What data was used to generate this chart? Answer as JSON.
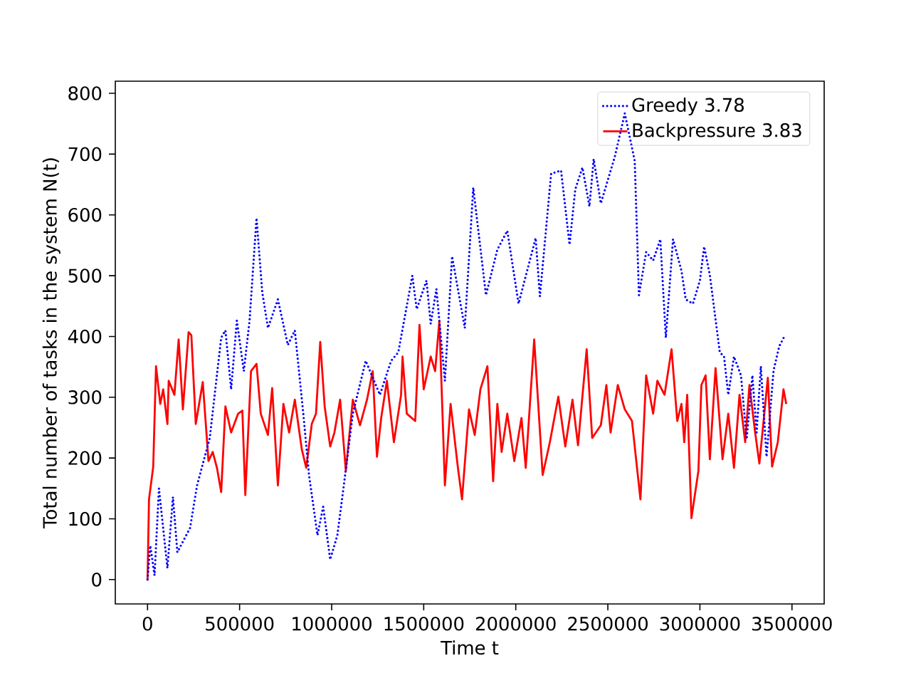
{
  "chart_data": {
    "type": "line",
    "xlabel": "Time t",
    "ylabel": "Total number of tasks in the system N(t)",
    "xlim": [
      -175000,
      3675000
    ],
    "ylim": [
      -40,
      820
    ],
    "xticks": [
      0,
      500000,
      1000000,
      1500000,
      2000000,
      2500000,
      3000000,
      3500000
    ],
    "yticks": [
      0,
      100,
      200,
      300,
      400,
      500,
      600,
      700,
      800
    ],
    "legend": "top right",
    "grid": false,
    "series": [
      {
        "name": "Greedy 3.78",
        "color": "#0000ff",
        "line_style": "dotted",
        "x": [
          0,
          15000,
          38000,
          62000,
          108000,
          138000,
          162000,
          231000,
          269000,
          338000,
          400000,
          423000,
          454000,
          485000,
          523000,
          554000,
          592000,
          623000,
          654000,
          708000,
          762000,
          800000,
          846000,
          877000,
          923000,
          954000,
          992000,
          1031000,
          1069000,
          1115000,
          1185000,
          1262000,
          1323000,
          1362000,
          1438000,
          1462000,
          1515000,
          1538000,
          1569000,
          1615000,
          1654000,
          1723000,
          1769000,
          1838000,
          1900000,
          1954000,
          2015000,
          2108000,
          2131000,
          2192000,
          2246000,
          2292000,
          2323000,
          2362000,
          2400000,
          2423000,
          2462000,
          2538000,
          2592000,
          2646000,
          2669000,
          2708000,
          2746000,
          2785000,
          2815000,
          2854000,
          2900000,
          2923000,
          2962000,
          3000000,
          3023000,
          3054000,
          3108000,
          3131000,
          3154000,
          3185000,
          3223000,
          3254000,
          3285000,
          3308000,
          3331000,
          3362000,
          3400000,
          3431000,
          3462000
        ],
        "values": [
          0,
          56,
          7,
          150,
          19,
          136,
          45,
          85,
          155,
          233,
          398,
          410,
          313,
          426,
          343,
          426,
          595,
          473,
          414,
          461,
          386,
          410,
          273,
          172,
          73,
          120,
          33,
          73,
          162,
          273,
          360,
          304,
          360,
          374,
          500,
          445,
          492,
          421,
          478,
          327,
          532,
          414,
          645,
          468,
          543,
          574,
          454,
          562,
          466,
          668,
          673,
          551,
          642,
          678,
          614,
          692,
          619,
          696,
          767,
          689,
          468,
          539,
          525,
          560,
          398,
          560,
          508,
          461,
          454,
          492,
          548,
          501,
          374,
          367,
          304,
          367,
          336,
          231,
          336,
          242,
          351,
          202,
          344,
          384,
          402
        ]
      },
      {
        "name": "Backpressure 3.83",
        "color": "#ff0000",
        "line_style": "solid",
        "x": [
          0,
          8000,
          31000,
          46000,
          69000,
          85000,
          108000,
          115000,
          146000,
          169000,
          192000,
          223000,
          238000,
          262000,
          300000,
          331000,
          354000,
          377000,
          400000,
          423000,
          454000,
          492000,
          515000,
          531000,
          562000,
          592000,
          615000,
          654000,
          677000,
          708000,
          738000,
          769000,
          800000,
          838000,
          862000,
          892000,
          915000,
          938000,
          962000,
          992000,
          1015000,
          1046000,
          1077000,
          1115000,
          1154000,
          1192000,
          1223000,
          1246000,
          1269000,
          1300000,
          1338000,
          1377000,
          1385000,
          1408000,
          1454000,
          1477000,
          1500000,
          1538000,
          1562000,
          1585000,
          1615000,
          1646000,
          1685000,
          1708000,
          1746000,
          1777000,
          1808000,
          1846000,
          1877000,
          1900000,
          1923000,
          1954000,
          1992000,
          2031000,
          2054000,
          2100000,
          2146000,
          2185000,
          2231000,
          2269000,
          2308000,
          2338000,
          2385000,
          2415000,
          2462000,
          2492000,
          2515000,
          2554000,
          2592000,
          2631000,
          2677000,
          2708000,
          2746000,
          2769000,
          2808000,
          2846000,
          2877000,
          2900000,
          2915000,
          2931000,
          2954000,
          2992000,
          3008000,
          3031000,
          3054000,
          3085000,
          3123000,
          3154000,
          3185000,
          3215000,
          3246000,
          3269000,
          3300000,
          3323000,
          3369000,
          3392000,
          3423000,
          3454000,
          3469000
        ],
        "values": [
          0,
          132,
          186,
          351,
          289,
          313,
          256,
          327,
          304,
          395,
          280,
          407,
          402,
          256,
          325,
          195,
          210,
          184,
          144,
          285,
          242,
          273,
          278,
          139,
          343,
          355,
          273,
          238,
          315,
          155,
          289,
          242,
          296,
          214,
          184,
          256,
          273,
          391,
          285,
          219,
          242,
          296,
          179,
          296,
          254,
          296,
          343,
          202,
          266,
          327,
          226,
          304,
          367,
          273,
          261,
          419,
          313,
          367,
          343,
          426,
          155,
          289,
          186,
          132,
          280,
          238,
          313,
          351,
          162,
          289,
          210,
          273,
          195,
          266,
          184,
          395,
          172,
          226,
          301,
          219,
          296,
          221,
          379,
          233,
          254,
          320,
          242,
          320,
          280,
          261,
          132,
          336,
          273,
          327,
          304,
          379,
          261,
          289,
          226,
          304,
          101,
          179,
          320,
          336,
          198,
          348,
          198,
          273,
          184,
          304,
          226,
          320,
          242,
          191,
          332,
          186,
          226,
          313,
          289
        ]
      }
    ]
  }
}
